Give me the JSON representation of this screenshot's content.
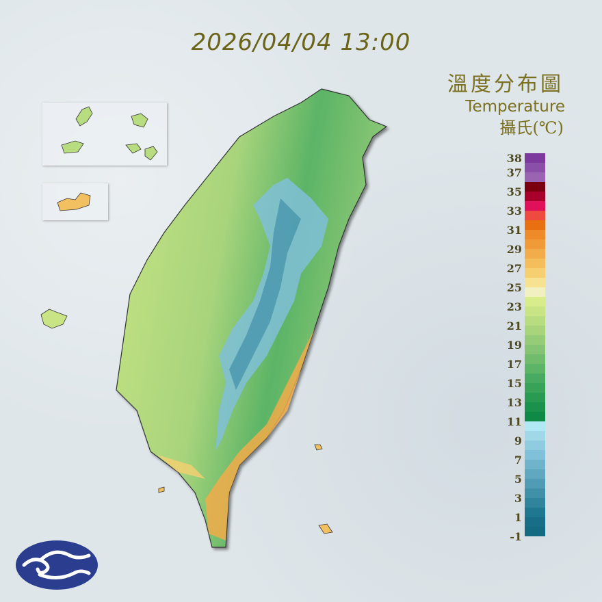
{
  "timestamp": "2026/04/04 13:00",
  "title_zh": "溫度分布圖",
  "title_en": "Temperature",
  "unit": "攝氏(℃)",
  "legend": {
    "labels": [
      "38",
      "37",
      "35",
      "33",
      "31",
      "29",
      "27",
      "25",
      "23",
      "21",
      "19",
      "17",
      "15",
      "13",
      "11",
      "9",
      "7",
      "5",
      "3",
      "1",
      "-1"
    ],
    "colors": [
      "#7d3a9e",
      "#8a4fa8",
      "#9a64b2",
      "#7a0010",
      "#a8002a",
      "#e0105a",
      "#ee4a40",
      "#e87010",
      "#ee8a28",
      "#f09a38",
      "#f2ac4a",
      "#f4be5a",
      "#f6d070",
      "#f6e290",
      "#f0f0c0",
      "#d8ec8c",
      "#c8e484",
      "#b8dc80",
      "#a8d47c",
      "#96cc78",
      "#84c472",
      "#70bc6c",
      "#5cb466",
      "#48aa60",
      "#38a258",
      "#289a52",
      "#1a924c",
      "#0e8a46",
      "#b0e8f4",
      "#a0d8e8",
      "#90cce0",
      "#80c0d8",
      "#70b4cc",
      "#60a8c0",
      "#509cb4",
      "#4090a8",
      "#30849c",
      "#207890",
      "#186e86",
      "#146a80"
    ]
  },
  "logo": "central-weather-administration-logo"
}
